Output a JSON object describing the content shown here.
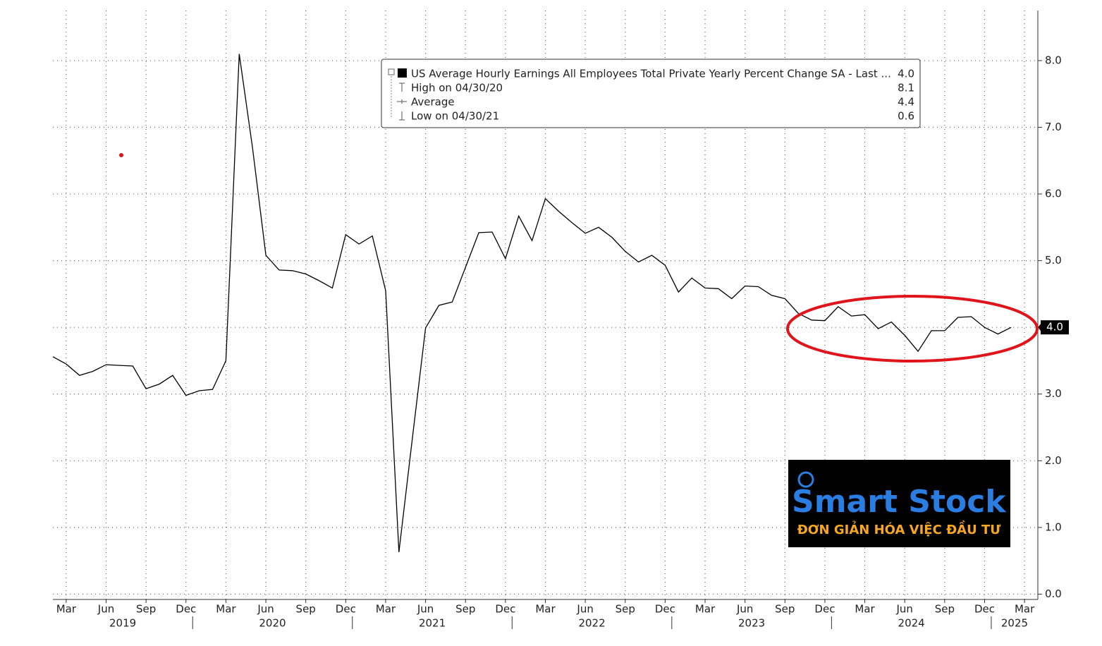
{
  "chart_data": {
    "type": "line",
    "x": [
      "2019-02",
      "2019-03",
      "2019-04",
      "2019-05",
      "2019-06",
      "2019-07",
      "2019-08",
      "2019-09",
      "2019-10",
      "2019-11",
      "2019-12",
      "2020-01",
      "2020-02",
      "2020-03",
      "2020-04",
      "2020-05",
      "2020-06",
      "2020-07",
      "2020-08",
      "2020-09",
      "2020-10",
      "2020-11",
      "2020-12",
      "2021-01",
      "2021-02",
      "2021-03",
      "2021-04",
      "2021-05",
      "2021-06",
      "2021-07",
      "2021-08",
      "2021-09",
      "2021-10",
      "2021-11",
      "2021-12",
      "2022-01",
      "2022-02",
      "2022-03",
      "2022-04",
      "2022-05",
      "2022-06",
      "2022-07",
      "2022-08",
      "2022-09",
      "2022-10",
      "2022-11",
      "2022-12",
      "2023-01",
      "2023-02",
      "2023-03",
      "2023-04",
      "2023-05",
      "2023-06",
      "2023-07",
      "2023-08",
      "2023-09",
      "2023-10",
      "2023-11",
      "2023-12",
      "2024-01",
      "2024-02",
      "2024-03",
      "2024-04",
      "2024-05",
      "2024-06",
      "2024-07",
      "2024-08",
      "2024-09",
      "2024-10",
      "2024-11",
      "2024-12",
      "2025-01",
      "2025-02"
    ],
    "series": [
      {
        "name": "US Average Hourly Earnings All Employees Total Private Yearly Percent Change SA - Last ...",
        "color": "#000000",
        "values": [
          3.56,
          3.45,
          3.28,
          3.34,
          3.44,
          3.43,
          3.42,
          3.08,
          3.15,
          3.28,
          2.98,
          3.05,
          3.07,
          3.5,
          8.1,
          6.69,
          5.08,
          4.86,
          4.85,
          4.8,
          4.7,
          4.59,
          5.39,
          5.25,
          5.37,
          4.55,
          0.63,
          2.32,
          3.99,
          4.33,
          4.38,
          4.9,
          5.42,
          5.43,
          5.03,
          5.67,
          5.3,
          5.93,
          5.74,
          5.57,
          5.41,
          5.5,
          5.35,
          5.14,
          4.98,
          5.08,
          4.93,
          4.53,
          4.74,
          4.59,
          4.58,
          4.43,
          4.62,
          4.61,
          4.48,
          4.43,
          4.21,
          4.11,
          4.1,
          4.31,
          4.17,
          4.19,
          3.98,
          4.08,
          3.88,
          3.64,
          3.95,
          3.95,
          4.15,
          4.16,
          4.0,
          3.9,
          4.0
        ],
        "last": {
          "value": 4,
          "label": "4.0"
        }
      }
    ],
    "stats": [
      {
        "label": "High on 04/30/20",
        "value": 8.1
      },
      {
        "label": "Average",
        "value": 4.4
      },
      {
        "label": "Low on 04/30/21",
        "value": 0.6
      }
    ],
    "xlim": [
      "2019-02",
      "2025-04"
    ],
    "xticks": [
      {
        "value": "2019-03",
        "label": "Mar"
      },
      {
        "value": "2019-06",
        "label": "Jun"
      },
      {
        "value": "2019-09",
        "label": "Sep"
      },
      {
        "value": "2019-12",
        "label": "Dec"
      },
      {
        "value": "2020-03",
        "label": "Mar"
      },
      {
        "value": "2020-06",
        "label": "Jun"
      },
      {
        "value": "2020-09",
        "label": "Sep"
      },
      {
        "value": "2020-12",
        "label": "Dec"
      },
      {
        "value": "2021-03",
        "label": "Mar"
      },
      {
        "value": "2021-06",
        "label": "Jun"
      },
      {
        "value": "2021-09",
        "label": "Sep"
      },
      {
        "value": "2021-12",
        "label": "Dec"
      },
      {
        "value": "2022-03",
        "label": "Mar"
      },
      {
        "value": "2022-06",
        "label": "Jun"
      },
      {
        "value": "2022-09",
        "label": "Sep"
      },
      {
        "value": "2022-12",
        "label": "Dec"
      },
      {
        "value": "2023-03",
        "label": "Mar"
      },
      {
        "value": "2023-06",
        "label": "Jun"
      },
      {
        "value": "2023-09",
        "label": "Sep"
      },
      {
        "value": "2023-12",
        "label": "Dec"
      },
      {
        "value": "2024-03",
        "label": "Mar"
      },
      {
        "value": "2024-06",
        "label": "Jun"
      },
      {
        "value": "2024-09",
        "label": "Sep"
      },
      {
        "value": "2024-12",
        "label": "Dec"
      },
      {
        "value": "2025-03",
        "label": "Mar"
      }
    ],
    "years": [
      2019,
      2020,
      2021,
      2022,
      2023,
      2024,
      2025
    ],
    "ylim": [
      -0.08,
      8.75
    ],
    "yticks": [
      {
        "value": 0,
        "label": "0.0"
      },
      {
        "value": 1,
        "label": "1.0"
      },
      {
        "value": 2,
        "label": "2.0"
      },
      {
        "value": 3,
        "label": "3.0"
      },
      {
        "value": 4,
        "label": "4.0"
      },
      {
        "value": 5,
        "label": "5.0"
      },
      {
        "value": 6,
        "label": "6.0"
      },
      {
        "value": 7,
        "label": "7.0"
      },
      {
        "value": 8,
        "label": "8.0"
      }
    ],
    "grid": true
  },
  "watermark": {
    "brand": "Smart Stock",
    "tagline": "ĐƠN GIẢN HÓA VIỆC ĐẦU TƯ"
  }
}
